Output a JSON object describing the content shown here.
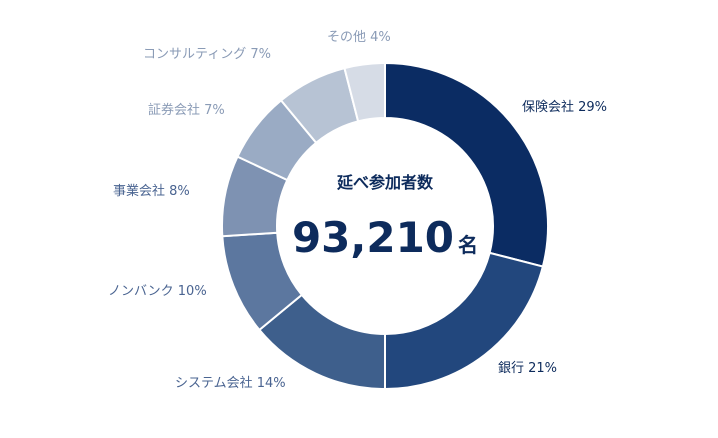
{
  "chart_data": {
    "type": "pie",
    "donut": true,
    "center_title": "延べ参加者数",
    "center_value": "93,210",
    "center_unit": "名",
    "slices": [
      {
        "label": "保険会社",
        "value": 29,
        "pct": "29%",
        "color": "#0b2c63"
      },
      {
        "label": "銀行",
        "value": 21,
        "pct": "21%",
        "color": "#22477d"
      },
      {
        "label": "システム会社",
        "value": 14,
        "pct": "14%",
        "color": "#3e5f8c"
      },
      {
        "label": "ノンバンク",
        "value": 10,
        "pct": "10%",
        "color": "#5c779f"
      },
      {
        "label": "事業会社",
        "value": 8,
        "pct": "8%",
        "color": "#7e92b2"
      },
      {
        "label": "証券会社",
        "value": 7,
        "pct": "7%",
        "color": "#9aabc4"
      },
      {
        "label": "コンサルティング",
        "value": 7,
        "pct": "7%",
        "color": "#b7c3d4"
      },
      {
        "label": "その他",
        "value": 4,
        "pct": "4%",
        "color": "#d6dce6"
      }
    ],
    "label_colors": {
      "dark": "#0d2b5c",
      "mid": "#4a6491",
      "light": "#8a9bb6"
    }
  }
}
